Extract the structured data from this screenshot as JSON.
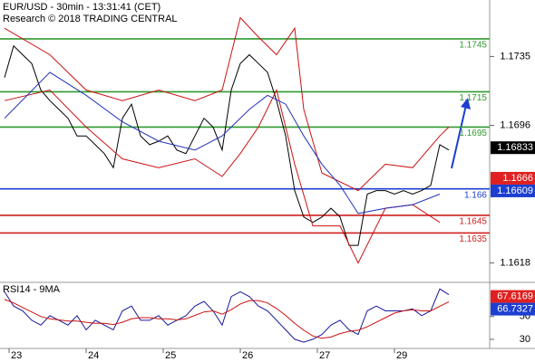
{
  "chart_data": [
    {
      "type": "line",
      "title": "EUR/USD - 30min - 13:31:41 (CET)",
      "subtitle": "Research © 2018 TRADING CENTRAL",
      "xlim": [
        -0.5,
        53.5
      ],
      "xticks": [
        {
          "value": 0.5,
          "label": "23"
        },
        {
          "value": 9,
          "label": "24"
        },
        {
          "value": 17.5,
          "label": "25"
        },
        {
          "value": 26,
          "label": "26"
        },
        {
          "value": 34.5,
          "label": "27"
        },
        {
          "value": 43,
          "label": "29"
        }
      ],
      "ylim": [
        1.1607,
        1.1767
      ],
      "yticks": [
        1.1618,
        1.1696,
        1.1735
      ],
      "levels": [
        {
          "value": 1.1745,
          "color": "#2f9a2f"
        },
        {
          "value": 1.1715,
          "color": "#2f9a2f"
        },
        {
          "value": 1.1695,
          "color": "#2f9a2f"
        },
        {
          "value": 1.166,
          "color": "#1c3fd0"
        },
        {
          "value": 1.1645,
          "color": "#d02020"
        },
        {
          "value": 1.1635,
          "color": "#d02020"
        }
      ],
      "price_tags": [
        {
          "value": 1.16833,
          "color": "#000000"
        },
        {
          "value": 1.1666,
          "color": "#e02020"
        },
        {
          "value": 1.16609,
          "color": "#1c3fd0"
        }
      ],
      "series": [
        {
          "color": "#000000",
          "x": [
            0,
            1,
            2,
            3,
            4,
            5,
            6,
            7,
            8,
            9,
            10,
            11,
            12,
            13,
            14,
            15,
            16,
            17,
            18,
            19,
            20,
            21,
            22,
            23,
            24,
            25,
            26,
            27,
            28,
            29,
            30,
            31,
            32,
            33,
            34,
            35,
            36,
            37,
            38,
            39,
            40,
            41,
            42,
            43,
            44,
            45,
            46,
            47,
            48,
            49
          ],
          "values": [
            1.1723,
            1.1741,
            1.1736,
            1.1731,
            1.1716,
            1.171,
            1.1705,
            1.17,
            1.169,
            1.169,
            1.1685,
            1.168,
            1.1672,
            1.17,
            1.1708,
            1.169,
            1.1685,
            1.1687,
            1.169,
            1.1682,
            1.168,
            1.169,
            1.17,
            1.1695,
            1.1682,
            1.1716,
            1.1731,
            1.1736,
            1.1731,
            1.1726,
            1.171,
            1.169,
            1.1659,
            1.1644,
            1.1641,
            1.1644,
            1.1649,
            1.1644,
            1.1628,
            1.1628,
            1.1657,
            1.1659,
            1.1659,
            1.1657,
            1.1659,
            1.1657,
            1.1659,
            1.1662,
            1.1685,
            1.1682
          ]
        },
        {
          "color": "#cc1111",
          "x": [
            0,
            5,
            9,
            13,
            17,
            21,
            24,
            26,
            28,
            30,
            32,
            33,
            35,
            39,
            42,
            45,
            48,
            49
          ],
          "values": [
            1.1751,
            1.1736,
            1.1716,
            1.171,
            1.1716,
            1.171,
            1.1716,
            1.1757,
            1.1746,
            1.1736,
            1.1751,
            1.1705,
            1.1669,
            1.1659,
            1.1674,
            1.1672,
            1.169,
            1.1695
          ]
        },
        {
          "color": "#cc1111",
          "x": [
            0,
            5,
            9,
            13,
            17,
            21,
            24,
            26,
            28,
            30,
            32,
            34,
            37,
            39,
            42,
            45,
            48
          ],
          "values": [
            1.171,
            1.1716,
            1.1695,
            1.1677,
            1.1672,
            1.1677,
            1.1667,
            1.168,
            1.1695,
            1.1716,
            1.1674,
            1.1639,
            1.1639,
            1.1618,
            1.1649,
            1.1651,
            1.1641
          ]
        },
        {
          "color": "#2233bb",
          "x": [
            0,
            5,
            9,
            13,
            17,
            21,
            24,
            27,
            29,
            31,
            33,
            35,
            37,
            39,
            42,
            45,
            48
          ],
          "values": [
            1.17,
            1.1726,
            1.1713,
            1.1698,
            1.1687,
            1.1682,
            1.169,
            1.1705,
            1.1713,
            1.1708,
            1.169,
            1.1674,
            1.1662,
            1.1646,
            1.1649,
            1.1651,
            1.1657
          ]
        }
      ]
    },
    {
      "type": "line",
      "title": "RSI14 - 9MA",
      "ylim": [
        22,
        80
      ],
      "yticks": [
        30,
        50
      ],
      "price_tags": [
        {
          "value": 67.6169,
          "color": "#e02020"
        },
        {
          "value": 66.7327,
          "color": "#1c3fd0"
        }
      ],
      "series": [
        {
          "color": "#1a1a99",
          "x": [
            0,
            1,
            2,
            3,
            4,
            5,
            6,
            7,
            8,
            9,
            10,
            11,
            12,
            13,
            14,
            15,
            16,
            17,
            18,
            19,
            20,
            21,
            22,
            23,
            24,
            25,
            26,
            27,
            28,
            29,
            30,
            31,
            32,
            33,
            34,
            35,
            36,
            37,
            38,
            39,
            40,
            41,
            42,
            43,
            44,
            45,
            46,
            47,
            48,
            49
          ],
          "values": [
            71.7,
            59.2,
            55,
            46.7,
            42.5,
            50.8,
            46.7,
            42.5,
            50.8,
            38.3,
            46.7,
            42.5,
            38.3,
            55,
            59.2,
            46.7,
            46.7,
            50.8,
            42.5,
            46.7,
            50.8,
            59.2,
            63.3,
            55,
            42.5,
            67.5,
            71.7,
            67.5,
            59.2,
            55,
            46.7,
            38.3,
            30,
            27.5,
            30,
            34.2,
            42.5,
            46.7,
            38.3,
            34.2,
            55,
            59.2,
            55,
            55,
            55,
            56.7,
            50.8,
            55,
            74.2,
            69.2
          ]
        },
        {
          "color": "#cc1111",
          "x": [
            0,
            1,
            2,
            3,
            4,
            5,
            6,
            7,
            8,
            9,
            10,
            11,
            12,
            13,
            14,
            15,
            16,
            17,
            18,
            19,
            20,
            21,
            22,
            23,
            24,
            25,
            26,
            27,
            28,
            29,
            30,
            31,
            32,
            33,
            34,
            35,
            36,
            37,
            38,
            39,
            40,
            41,
            42,
            43,
            44,
            45,
            46,
            47,
            48,
            49
          ],
          "values": [
            65,
            62,
            58,
            54,
            50,
            48,
            47,
            46,
            46,
            45,
            44,
            44,
            43,
            45,
            48,
            49,
            49,
            48,
            48,
            47,
            48,
            51,
            54,
            55,
            52,
            56,
            61,
            64,
            64,
            62,
            57,
            51,
            44,
            38,
            33,
            31,
            32,
            35,
            37,
            38,
            41,
            45,
            49,
            53,
            55,
            56,
            55,
            55,
            59,
            63
          ]
        }
      ]
    }
  ]
}
